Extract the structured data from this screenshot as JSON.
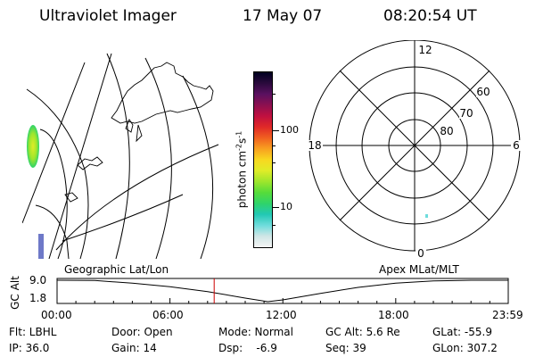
{
  "header": {
    "instrument": "Ultraviolet Imager",
    "date": "17 May 07",
    "time": "08:20:54 UT"
  },
  "colorbar": {
    "unit_label": "photon cm",
    "unit_exp1": "-2",
    "unit_mid": "s",
    "unit_exp2": "-1",
    "ticks": [
      "100",
      "10"
    ],
    "colors": [
      "#f5f5f5",
      "#cfe6e6",
      "#6edcdc",
      "#22c8b4",
      "#2fd46a",
      "#56dc3a",
      "#9ee62c",
      "#e0ec28",
      "#f8d820",
      "#f8a020",
      "#f06020",
      "#e02828",
      "#c01040",
      "#8c1050",
      "#5a1060",
      "#2a0a3c",
      "#000020"
    ]
  },
  "geo_map": {
    "caption": "Geographic Lat/Lon",
    "aurora_color": "#9ee62c"
  },
  "polar_plot": {
    "caption": "Apex MLat/MLT",
    "mlt_labels": {
      "top": "12",
      "left": "18",
      "right": "6",
      "bottom": "0"
    },
    "lat_labels": [
      "60",
      "70",
      "80"
    ]
  },
  "timeline": {
    "ylabel": "GC Alt",
    "ytick_top": "9.0",
    "ytick_bottom": "1.8",
    "xticks": [
      "00:00",
      "06:00",
      "12:00",
      "18:00",
      "23:59"
    ],
    "marker_color": "#cc0000"
  },
  "info": {
    "flt": "Flt: LBHL",
    "door": "Door: Open",
    "mode": "Mode: Normal",
    "gc_alt": "GC Alt: 5.6 Re",
    "glat": "GLat: -55.9",
    "ip": "IP: 36.0",
    "gain": "Gain: 14",
    "dsp": "Dsp:    -6.9",
    "seq": "Seq: 39",
    "glon": "GLon: 307.2"
  },
  "chart_data": {
    "type": "line",
    "x_label_ticks": [
      "00:00",
      "06:00",
      "12:00",
      "18:00",
      "23:59"
    ],
    "x": [
      0,
      2,
      4,
      6,
      8,
      10,
      11.2,
      12,
      14,
      16,
      18,
      20,
      22,
      23.98
    ],
    "values": [
      9.0,
      8.9,
      8.0,
      6.8,
      5.2,
      3.0,
      1.8,
      2.4,
      4.6,
      6.6,
      8.0,
      8.8,
      9.0,
      9.0
    ],
    "ylabel": "GC Alt",
    "y_ticks": [
      "9.0",
      "1.8"
    ],
    "current_time": 8.35
  }
}
